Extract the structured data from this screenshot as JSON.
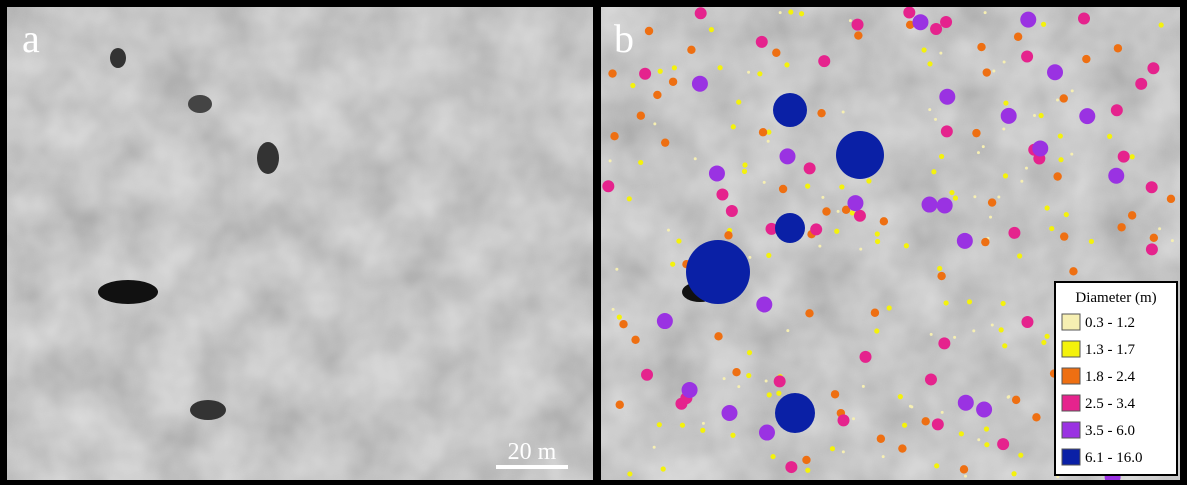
{
  "panels": [
    {
      "label": "a",
      "scale_bar": "20 m"
    },
    {
      "label": "b"
    }
  ],
  "legend": {
    "title": "Diameter (m)",
    "items": [
      {
        "label": "0.3 - 1.2",
        "color": "#f6efb2"
      },
      {
        "label": "1.3 - 1.7",
        "color": "#f4f20c"
      },
      {
        "label": "1.8 - 2.4",
        "color": "#ee6f12"
      },
      {
        "label": "2.5 - 3.4",
        "color": "#e5238d"
      },
      {
        "label": "3.5 - 6.0",
        "color": "#9a32e2"
      },
      {
        "label": "6.1 - 16.0",
        "color": "#0a20a6"
      }
    ]
  }
}
